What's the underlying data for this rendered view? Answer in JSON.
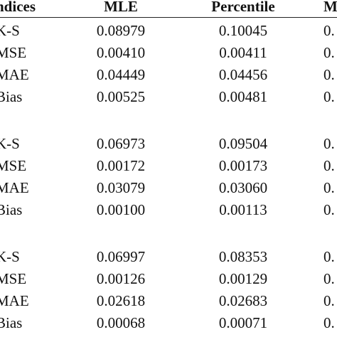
{
  "table": {
    "header": [
      "ndices",
      "MLE",
      "Percentile",
      "M"
    ],
    "groups": [
      [
        [
          "K-S",
          "0.08979",
          "0.10045",
          "0."
        ],
        [
          "MSE",
          "0.00410",
          "0.00411",
          "0."
        ],
        [
          "MAE",
          "0.04449",
          "0.04456",
          "0."
        ],
        [
          "Bias",
          "0.00525",
          "0.00481",
          "0."
        ]
      ],
      [
        [
          "K-S",
          "0.06973",
          "0.09504",
          "0."
        ],
        [
          "MSE",
          "0.00172",
          "0.00173",
          "0."
        ],
        [
          "MAE",
          "0.03079",
          "0.03060",
          "0."
        ],
        [
          "Bias",
          "0.00100",
          "0.00113",
          "0."
        ]
      ],
      [
        [
          "K-S",
          "0.06997",
          "0.08353",
          "0."
        ],
        [
          "MSE",
          "0.00126",
          "0.00129",
          "0."
        ],
        [
          "MAE",
          "0.02618",
          "0.02683",
          "0."
        ],
        [
          "Bias",
          "0.00068",
          "0.00071",
          "0."
        ]
      ]
    ]
  }
}
